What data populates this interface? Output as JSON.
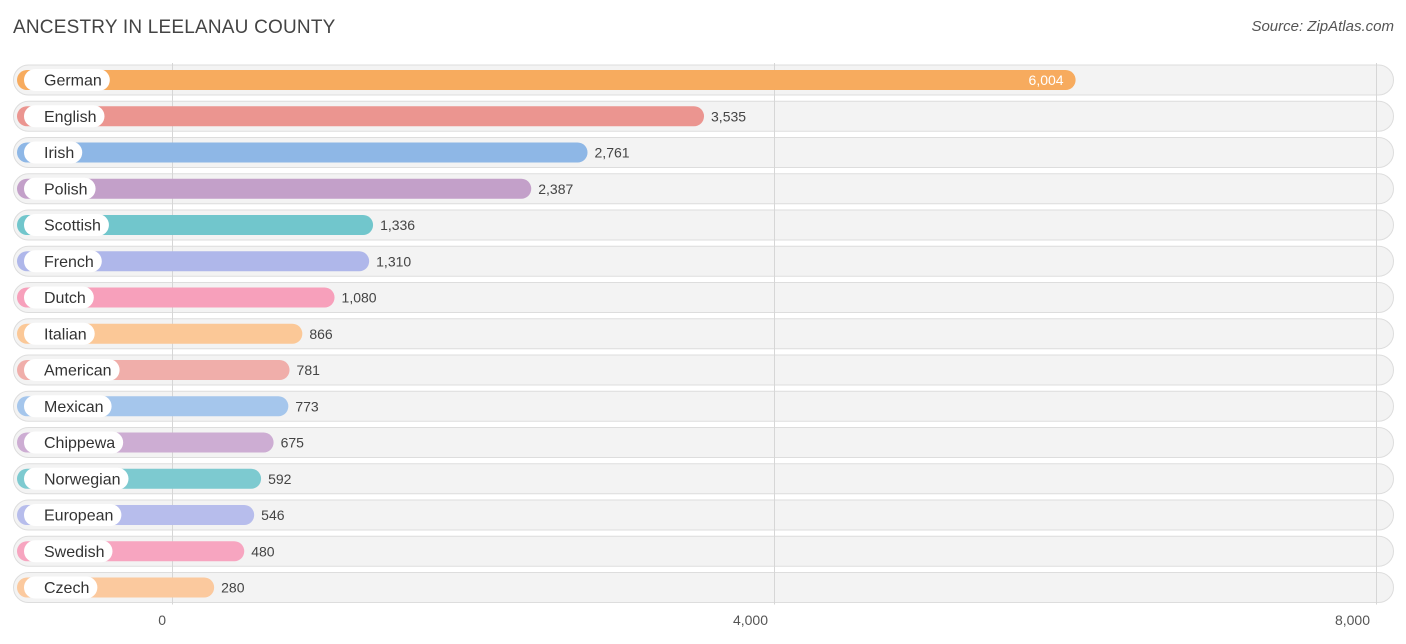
{
  "header": {
    "title": "ANCESTRY IN LEELANAU COUNTY",
    "source": "Source: ZipAtlas.com"
  },
  "chart_data": {
    "type": "bar",
    "orientation": "horizontal",
    "title": "ANCESTRY IN LEELANAU COUNTY",
    "xlim": [
      0,
      8000
    ],
    "ticks": [
      0,
      4000,
      8000
    ],
    "tick_labels": [
      "0",
      "4,000",
      "8,000"
    ],
    "grid": true,
    "categories": [
      "German",
      "English",
      "Irish",
      "Polish",
      "Scottish",
      "French",
      "Dutch",
      "Italian",
      "American",
      "Mexican",
      "Chippewa",
      "Norwegian",
      "European",
      "Swedish",
      "Czech"
    ],
    "values": [
      6004,
      3535,
      2761,
      2387,
      1336,
      1310,
      1080,
      866,
      781,
      773,
      675,
      592,
      546,
      480,
      280
    ],
    "value_labels": [
      "6,004",
      "3,535",
      "2,761",
      "2,387",
      "1,336",
      "1,310",
      "1,080",
      "866",
      "781",
      "773",
      "675",
      "592",
      "546",
      "480",
      "280"
    ],
    "colors": [
      "#f7ab5e",
      "#eb9590",
      "#8eb7e6",
      "#c3a0c9",
      "#71c6cc",
      "#afb7ea",
      "#f7a0bb",
      "#fbc897",
      "#f0aeaa",
      "#a5c6ec",
      "#cdadd3",
      "#7dcad0",
      "#b7bdec",
      "#f7a5c0",
      "#fbc99e"
    ]
  }
}
